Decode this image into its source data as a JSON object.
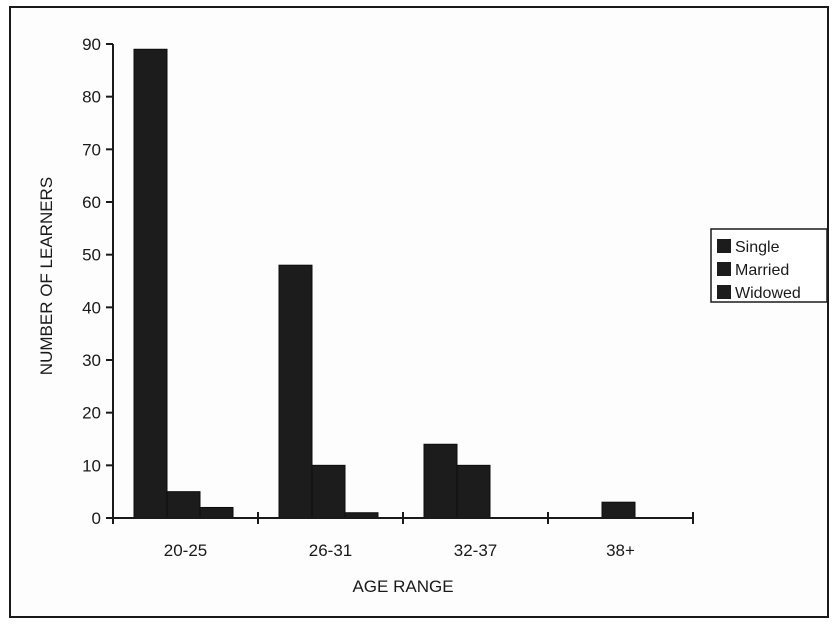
{
  "chart_data": {
    "type": "bar",
    "title": "",
    "xlabel": "AGE RANGE",
    "ylabel": "NUMBER OF LEARNERS",
    "categories": [
      "20-25",
      "26-31",
      "32-37",
      "38+"
    ],
    "series": [
      {
        "name": "Single",
        "values": [
          89,
          48,
          14,
          0
        ]
      },
      {
        "name": "Married",
        "values": [
          5,
          10,
          10,
          3
        ]
      },
      {
        "name": "Widowed",
        "values": [
          2,
          1,
          0,
          0
        ]
      }
    ],
    "ylim": [
      0,
      90
    ],
    "yticks": [
      0,
      10,
      20,
      30,
      40,
      50,
      60,
      70,
      80,
      90
    ],
    "yticks_text": [
      "0",
      "10",
      "20",
      "30",
      "40",
      "50",
      "60",
      "70",
      "80",
      "90"
    ],
    "grid": false,
    "legend_position": "right",
    "colors": {
      "bar": "#1c1c1c",
      "axis": "#1a1a1a"
    }
  }
}
